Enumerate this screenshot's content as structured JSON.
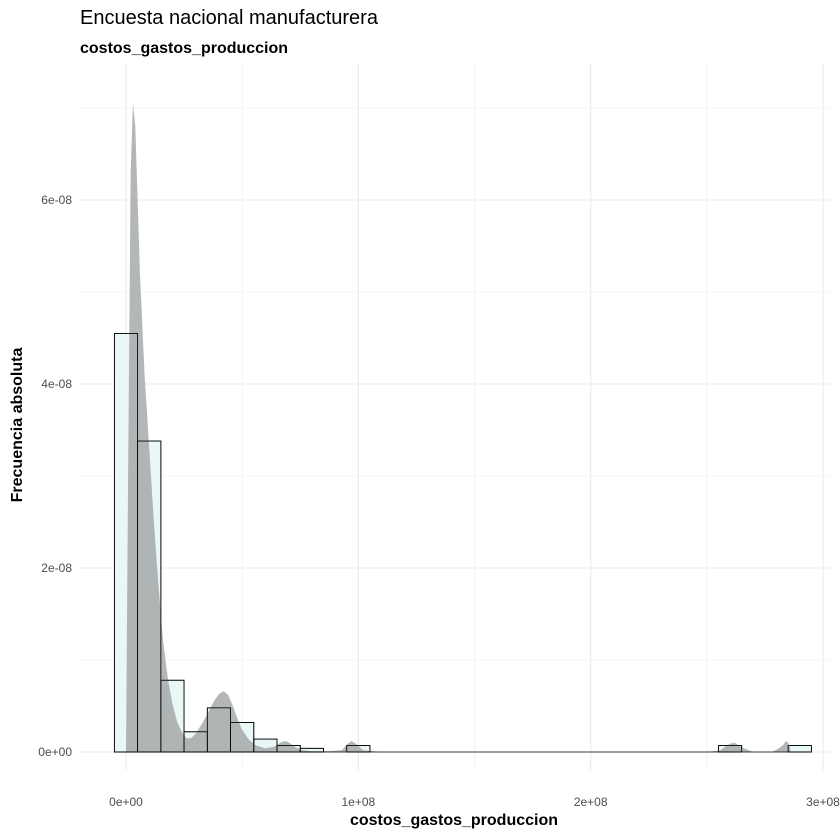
{
  "chart_data": {
    "type": "histogram",
    "title": "Encuesta nacional manufacturera",
    "subtitle": "costos_gastos_produccion",
    "xlabel": "costos_gastos_produccion",
    "ylabel": "Frecuencia absoluta",
    "xlim": [
      -5000000,
      300000000
    ],
    "ylim": [
      -2e-09,
      7.1e-08
    ],
    "x_ticks": [
      {
        "value": 0,
        "label": "0e+00"
      },
      {
        "value": 100000000,
        "label": "1e+08"
      },
      {
        "value": 200000000,
        "label": "2e+08"
      },
      {
        "value": 300000000,
        "label": "3e+08"
      }
    ],
    "y_ticks": [
      {
        "value": 0,
        "label": "0e+00"
      },
      {
        "value": 2e-08,
        "label": "2e-08"
      },
      {
        "value": 4e-08,
        "label": "4e-08"
      },
      {
        "value": 6e-08,
        "label": "6e-08"
      }
    ],
    "bins": [
      {
        "x0": -5000000,
        "x1": 5000000,
        "density": 4.55e-08
      },
      {
        "x0": 5000000,
        "x1": 15000000,
        "density": 3.38e-08
      },
      {
        "x0": 15000000,
        "x1": 25000000,
        "density": 7.8e-09
      },
      {
        "x0": 25000000,
        "x1": 35000000,
        "density": 2.2e-09
      },
      {
        "x0": 35000000,
        "x1": 45000000,
        "density": 4.8e-09
      },
      {
        "x0": 45000000,
        "x1": 55000000,
        "density": 3.2e-09
      },
      {
        "x0": 55000000,
        "x1": 65000000,
        "density": 1.4e-09
      },
      {
        "x0": 65000000,
        "x1": 75000000,
        "density": 7e-10
      },
      {
        "x0": 75000000,
        "x1": 85000000,
        "density": 4e-10
      },
      {
        "x0": 85000000,
        "x1": 95000000,
        "density": 0
      },
      {
        "x0": 95000000,
        "x1": 105000000,
        "density": 7e-10
      },
      {
        "x0": 255000000,
        "x1": 265000000,
        "density": 7e-10
      },
      {
        "x0": 285000000,
        "x1": 295000000,
        "density": 7e-10
      }
    ],
    "density_curve": {
      "x": [
        0,
        1000000,
        2000000,
        3000000,
        4000000,
        5000000,
        6000000,
        8000000,
        10000000,
        12000000,
        14000000,
        16000000,
        18000000,
        20000000,
        22000000,
        24000000,
        26000000,
        28000000,
        30000000,
        33000000,
        36000000,
        38000000,
        40000000,
        42000000,
        44000000,
        46000000,
        48000000,
        50000000,
        53000000,
        56000000,
        60000000,
        64000000,
        67000000,
        69000000,
        71000000,
        73000000,
        76000000,
        80000000,
        88000000,
        93000000,
        95000000,
        97000000,
        99000000,
        102000000,
        110000000,
        150000000,
        200000000,
        250000000,
        256000000,
        258000000,
        260000000,
        262000000,
        265000000,
        270000000,
        278000000,
        281000000,
        283000000,
        284000000,
        285000000,
        286000000
      ],
      "y": [
        0,
        3.3e-08,
        6.3e-08,
        7.05e-08,
        6.8e-08,
        6e-08,
        5.2e-08,
        4.1e-08,
        3.3e-08,
        2.5e-08,
        1.8e-08,
        1.2e-08,
        8e-09,
        5.2e-09,
        3.3e-09,
        2.2e-09,
        1.5e-09,
        1.5e-09,
        2e-09,
        3.2e-09,
        4.6e-09,
        5.6e-09,
        6.3e-09,
        6.6e-09,
        6.2e-09,
        5e-09,
        3.6e-09,
        2.4e-09,
        1.3e-09,
        7e-10,
        4e-10,
        6e-10,
        1.1e-09,
        1.2e-09,
        9e-10,
        5e-10,
        2e-10,
        1e-10,
        1e-10,
        2e-10,
        8e-10,
        1.2e-09,
        9e-10,
        2e-10,
        0,
        0,
        0,
        0,
        2e-10,
        6e-10,
        9e-10,
        1e-09,
        5e-10,
        0,
        0,
        4e-10,
        8e-10,
        1.2e-09,
        1e-09,
        3e-10
      ]
    },
    "colors": {
      "bar_fill": "#eaf7f7",
      "bar_stroke": "#000000",
      "density_fill": "#9ea3a3",
      "grid": "#ebebeb",
      "tick_label": "#4d4d4d"
    },
    "grid": true
  }
}
